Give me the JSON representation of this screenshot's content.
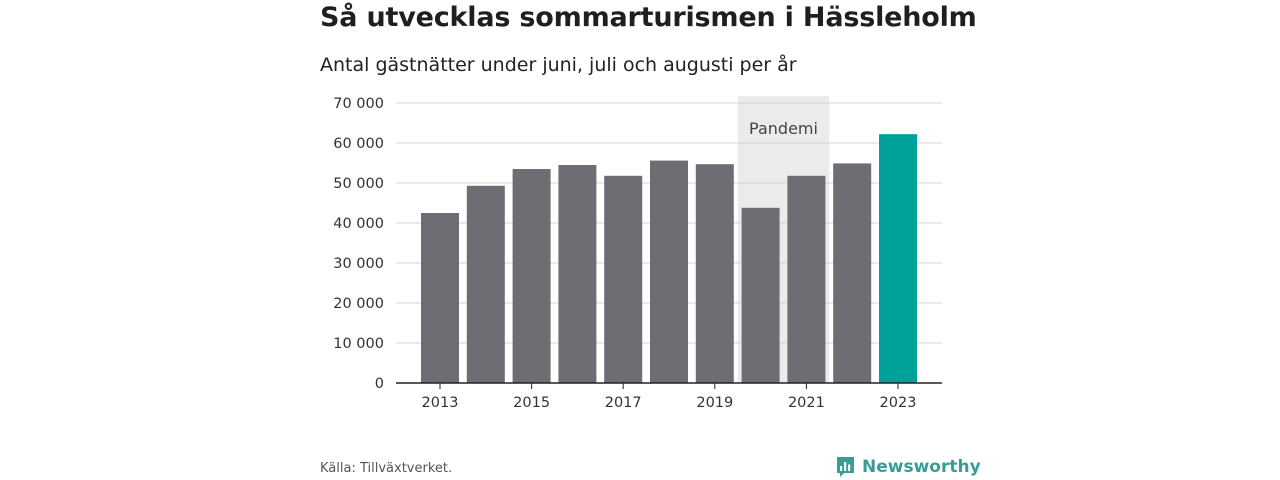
{
  "title": "Så utvecklas sommarturismen i Hässleholm",
  "subtitle": "Antal gästnätter under juni, juli och augusti per år",
  "source": "Källa: Tillväxtverket.",
  "brand": {
    "name": "Newsworthy",
    "icon": "newsworthy-logo-icon",
    "color": "#3a9c97"
  },
  "chart_data": {
    "type": "bar",
    "categories": [
      "2013",
      "2014",
      "2015",
      "2016",
      "2017",
      "2018",
      "2019",
      "2020",
      "2021",
      "2022",
      "2023"
    ],
    "values": [
      42500,
      49300,
      53500,
      54500,
      51800,
      55600,
      54700,
      43800,
      51800,
      54900,
      62200
    ],
    "ylim": [
      0,
      70000
    ],
    "yticks": [
      0,
      10000,
      20000,
      30000,
      40000,
      50000,
      60000,
      70000
    ],
    "ytick_labels": [
      "0",
      "10 000",
      "20 000",
      "30 000",
      "40 000",
      "50 000",
      "60 000",
      "70 000"
    ],
    "xtick_labels": [
      "2013",
      "2015",
      "2017",
      "2019",
      "2021",
      "2023"
    ],
    "highlight": {
      "category": "2023",
      "color": "#00a19a"
    },
    "bar_color": "#6e6d73",
    "grid": true,
    "annotation": {
      "label": "Pandemi",
      "from": "2020",
      "to": "2021",
      "color": "#ebebeb"
    }
  }
}
